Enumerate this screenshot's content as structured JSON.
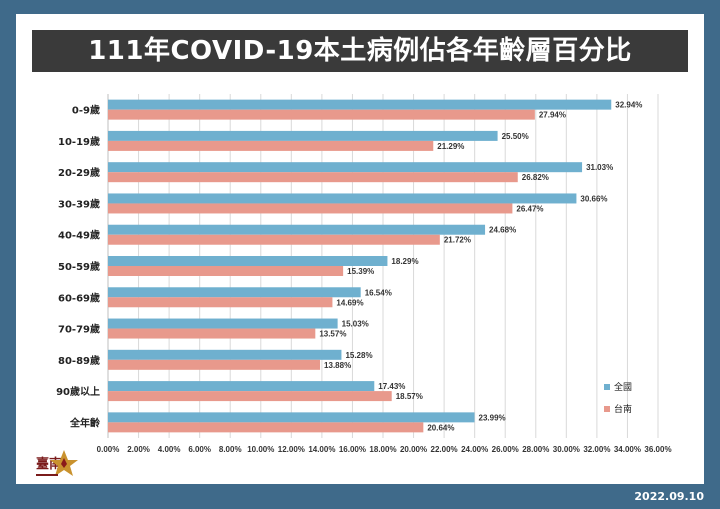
{
  "page": {
    "title": "111年COVID-19本土病例佔各年齡層百分比",
    "date": "2022.09.10"
  },
  "colors": {
    "background": "#3f6a8a",
    "title_bg": "#3a3a3a",
    "series_national": "#6fb0cf",
    "series_tainan": "#e8998c"
  },
  "icons": {
    "logo": "tainan-city-logo"
  },
  "chart_data": {
    "type": "bar",
    "orientation": "horizontal",
    "categories": [
      "0-9歲",
      "10-19歲",
      "20-29歲",
      "30-39歲",
      "40-49歲",
      "50-59歲",
      "60-69歲",
      "70-79歲",
      "80-89歲",
      "90歲以上",
      "全年齡"
    ],
    "series": [
      {
        "name": "全國",
        "color": "#6fb0cf",
        "values": [
          32.94,
          25.5,
          31.03,
          30.66,
          24.68,
          18.29,
          16.54,
          15.03,
          15.28,
          17.43,
          23.99
        ]
      },
      {
        "name": "台南",
        "color": "#e8998c",
        "values": [
          27.94,
          21.29,
          26.82,
          26.47,
          21.72,
          15.39,
          14.69,
          13.57,
          13.88,
          18.57,
          20.64
        ]
      }
    ],
    "xlim": [
      0,
      36
    ],
    "xticks": [
      0,
      2,
      4,
      6,
      8,
      10,
      12,
      14,
      16,
      18,
      20,
      22,
      24,
      26,
      28,
      30,
      32,
      34,
      36
    ],
    "tick_format": "percent_2dp",
    "grid": "vertical",
    "legend": "right"
  }
}
